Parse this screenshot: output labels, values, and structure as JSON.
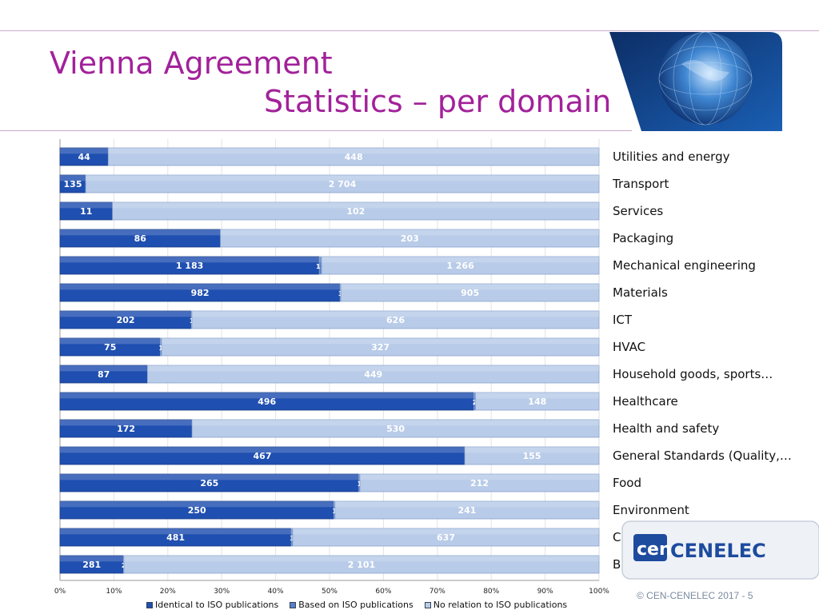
{
  "header": {
    "title_line1": "Vienna Agreement",
    "title_line2": "Statistics – per domain"
  },
  "footer": {
    "copyright": "© CEN-CENELEC 2017  - 5",
    "logo_text": "CENELEC",
    "logo_mark": "cen"
  },
  "colors": {
    "title": "#a2229a",
    "identical": "#1f4fb0",
    "based": "#5b7ec9",
    "no_relation": "#b8cbe8"
  },
  "chart_data": {
    "type": "bar",
    "orientation": "horizontal",
    "stacked": "percent",
    "categories": [
      "Utilities and energy",
      "Transport",
      "Services",
      "Packaging",
      "Mechanical engineering",
      "Materials",
      "ICT",
      "HVAC",
      "Household goods, sports…",
      "Healthcare",
      "Health and safety",
      "General Standards (Quality,…",
      "Food",
      "Environment",
      "Chemistry",
      "Building and civil engineering"
    ],
    "series": [
      {
        "name": "Identical to ISO publications",
        "values": [
          44,
          135,
          11,
          86,
          1183,
          982,
          202,
          75,
          87,
          496,
          172,
          467,
          265,
          250,
          481,
          281
        ],
        "labels": [
          "44",
          "135",
          "11",
          "86",
          "1 183",
          "982",
          "202",
          "75",
          "87",
          "496",
          "172",
          "467",
          "265",
          "250",
          "481",
          "281"
        ]
      },
      {
        "name": "Based on ISO publications",
        "values": [
          0,
          0,
          0,
          0,
          11,
          3,
          1,
          1,
          0,
          2,
          0,
          0,
          1,
          1,
          3,
          2
        ],
        "labels": [
          "",
          "",
          "",
          "",
          "11",
          "3",
          "1",
          "1",
          "",
          "2",
          "",
          "",
          "1",
          "1",
          "3",
          "2"
        ]
      },
      {
        "name": "No relation to ISO publications",
        "values": [
          448,
          2704,
          102,
          203,
          1266,
          905,
          626,
          327,
          449,
          148,
          530,
          155,
          212,
          241,
          637,
          2101
        ],
        "labels": [
          "448",
          "2 704",
          "102",
          "203",
          "1 266",
          "905",
          "626",
          "327",
          "449",
          "148",
          "530",
          "155",
          "212",
          "241",
          "637",
          "2 101"
        ]
      }
    ],
    "x_ticks": [
      "0%",
      "10%",
      "20%",
      "30%",
      "40%",
      "50%",
      "60%",
      "70%",
      "80%",
      "90%",
      "100%"
    ],
    "xlim": [
      0,
      100
    ],
    "grid": true,
    "legend_position": "bottom"
  }
}
